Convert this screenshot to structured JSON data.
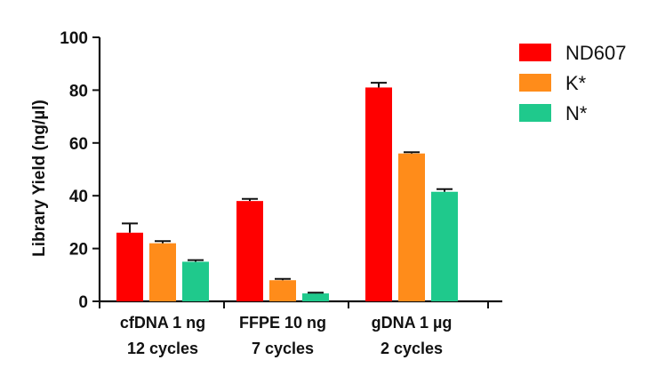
{
  "chart_data": {
    "type": "bar",
    "title": "",
    "xlabel": "",
    "ylabel": "Library Yield (ng/µl)",
    "ylim": [
      0,
      100
    ],
    "y_ticks": [
      0,
      20,
      40,
      60,
      80,
      100
    ],
    "grid": false,
    "legend_position": "top-right",
    "categories": [
      {
        "line1": "cfDNA 1 ng",
        "line2": "12 cycles"
      },
      {
        "line1": "FFPE 10 ng",
        "line2": "7 cycles"
      },
      {
        "line1": "gDNA 1 µg",
        "line2": "2 cycles"
      }
    ],
    "series": [
      {
        "name": "ND607",
        "color": "#ff0000",
        "values": [
          26,
          38,
          81
        ],
        "errors": [
          3.5,
          0.8,
          1.8
        ]
      },
      {
        "name": "K*",
        "color": "#ff8c1a",
        "values": [
          22,
          8,
          56
        ],
        "errors": [
          0.8,
          0.5,
          0.5
        ]
      },
      {
        "name": "N*",
        "color": "#1fc98c",
        "values": [
          15,
          3,
          41.5
        ],
        "errors": [
          0.6,
          0.3,
          1.0
        ]
      }
    ]
  }
}
